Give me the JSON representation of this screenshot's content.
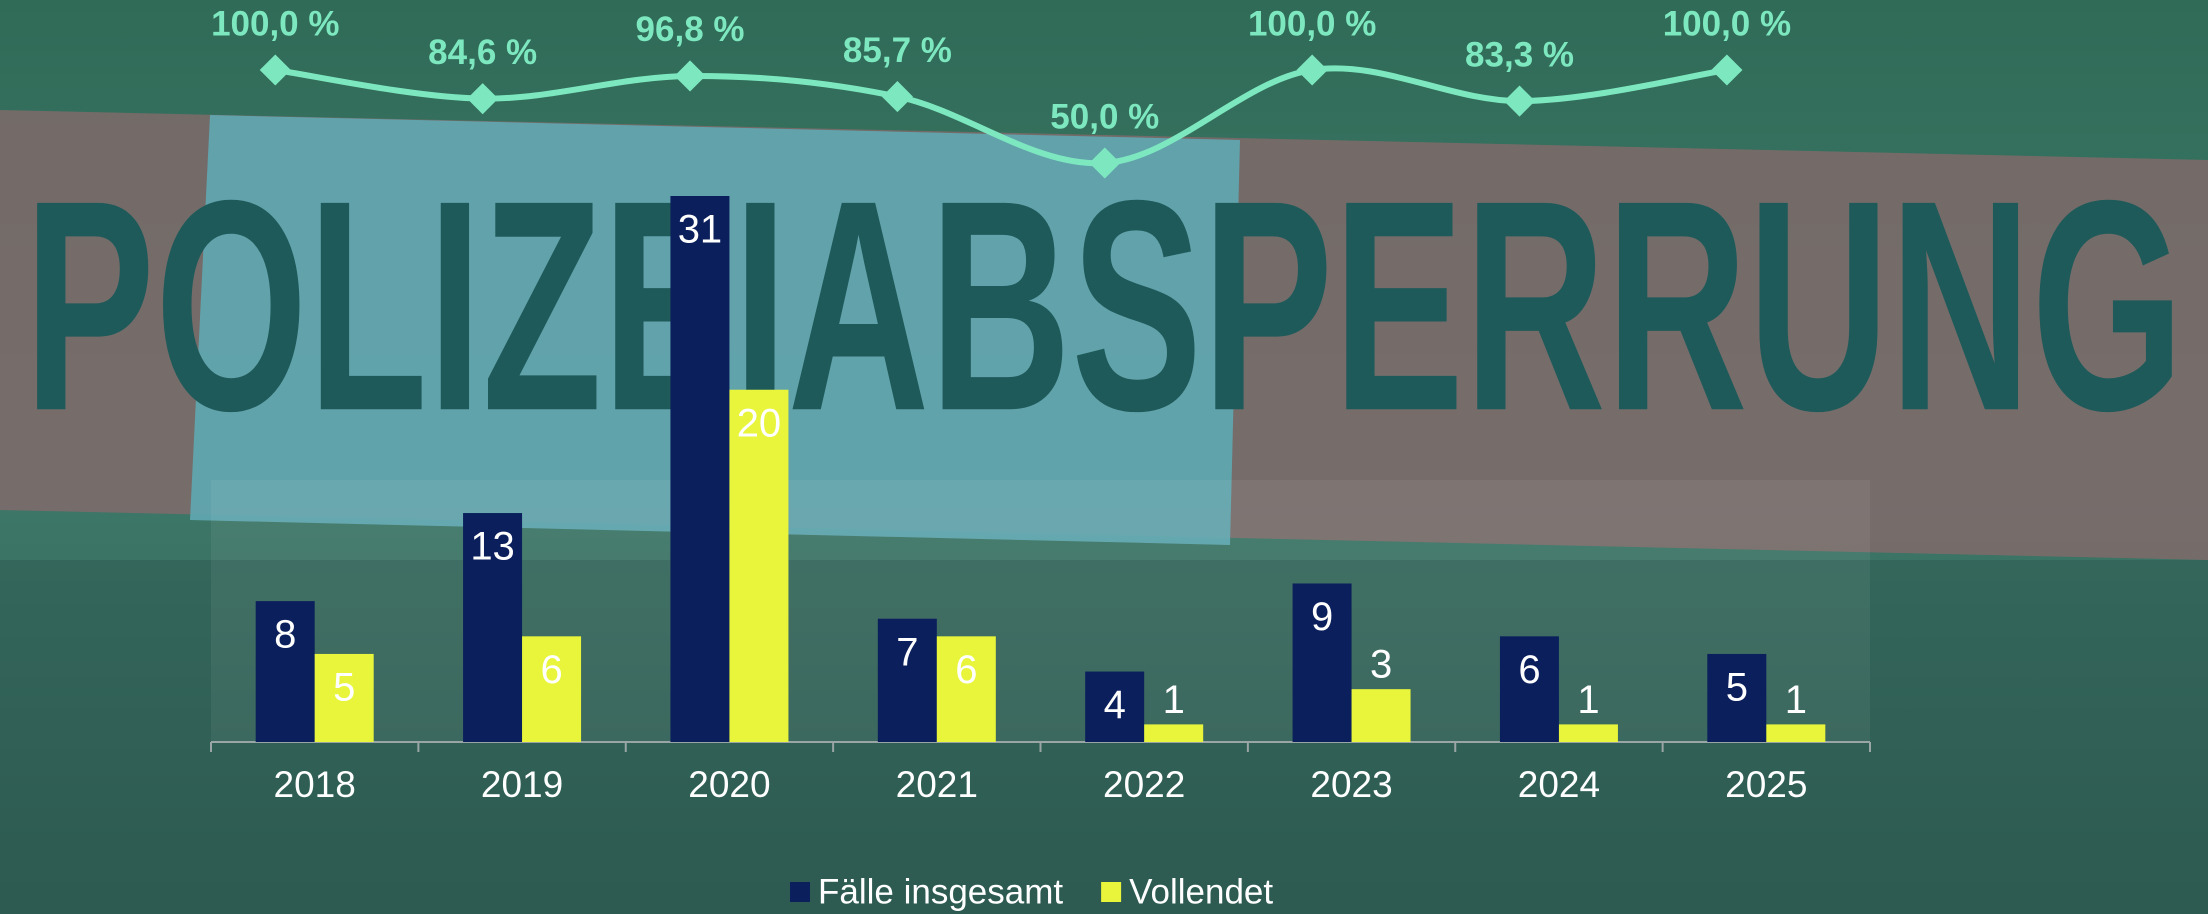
{
  "chart_data": {
    "type": "bar",
    "background_text": "POLIZEIABSPERRUNG",
    "categories": [
      "2018",
      "2019",
      "2020",
      "2021",
      "2022",
      "2023",
      "2024",
      "2025"
    ],
    "series": [
      {
        "name": "Fälle insgesamt",
        "color": "#0b1f5c",
        "values": [
          8,
          13,
          31,
          7,
          4,
          9,
          6,
          5
        ]
      },
      {
        "name": "Vollendet",
        "color": "#e8f53a",
        "values": [
          5,
          6,
          20,
          6,
          1,
          3,
          1,
          1
        ]
      }
    ],
    "line": {
      "type": "line",
      "color": "#7de8c0",
      "values": [
        100.0,
        84.6,
        96.8,
        85.7,
        50.0,
        100.0,
        83.3,
        100.0
      ],
      "value_labels": [
        "100,0 %",
        "84,6 %",
        "96,8 %",
        "85,7 %",
        "50,0 %",
        "100,0 %",
        "83,3 %",
        "100,0 %"
      ]
    },
    "legend": "bottom"
  }
}
